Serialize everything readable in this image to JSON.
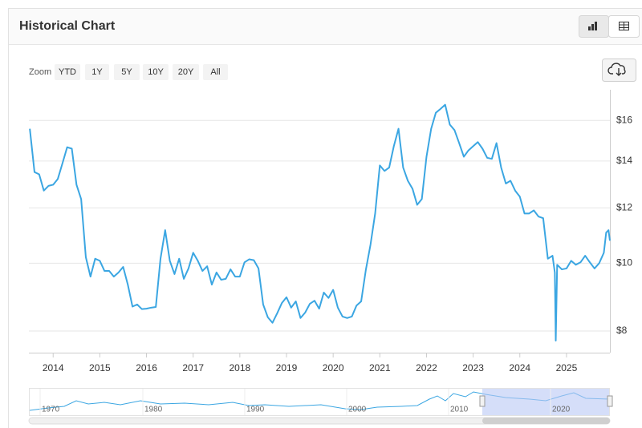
{
  "header": {
    "title": "Historical Chart"
  },
  "zoom": {
    "label": "Zoom",
    "buttons": [
      "YTD",
      "1Y",
      "5Y",
      "10Y",
      "20Y",
      "All"
    ]
  },
  "navigator": {
    "labels": [
      "1970",
      "1980",
      "1990",
      "2000",
      "2010",
      "2020"
    ]
  },
  "chart_data": {
    "type": "line",
    "color": "#3ba6e2",
    "log": true,
    "grid": true,
    "x": [
      2013.5,
      2013.6,
      2013.7,
      2013.8,
      2013.9,
      2014.0,
      2014.1,
      2014.2,
      2014.3,
      2014.4,
      2014.5,
      2014.6,
      2014.7,
      2014.8,
      2014.9,
      2015.0,
      2015.1,
      2015.2,
      2015.3,
      2015.4,
      2015.5,
      2015.6,
      2015.7,
      2015.8,
      2015.9,
      2016.0,
      2016.1,
      2016.2,
      2016.3,
      2016.4,
      2016.5,
      2016.6,
      2016.7,
      2016.8,
      2016.9,
      2017.0,
      2017.1,
      2017.2,
      2017.3,
      2017.4,
      2017.5,
      2017.6,
      2017.7,
      2017.8,
      2017.9,
      2018.0,
      2018.1,
      2018.2,
      2018.3,
      2018.4,
      2018.5,
      2018.6,
      2018.7,
      2018.8,
      2018.9,
      2019.0,
      2019.1,
      2019.2,
      2019.3,
      2019.4,
      2019.5,
      2019.6,
      2019.7,
      2019.8,
      2019.9,
      2020.0,
      2020.1,
      2020.2,
      2020.3,
      2020.4,
      2020.5,
      2020.6,
      2020.7,
      2020.8,
      2020.9,
      2021.0,
      2021.1,
      2021.2,
      2021.3,
      2021.4,
      2021.5,
      2021.6,
      2021.7,
      2021.8,
      2021.9,
      2022.0,
      2022.1,
      2022.2,
      2022.3,
      2022.4,
      2022.5,
      2022.6,
      2022.7,
      2022.8,
      2022.9,
      2023.0,
      2023.1,
      2023.2,
      2023.3,
      2023.4,
      2023.5,
      2023.6,
      2023.7,
      2023.8,
      2023.9,
      2024.0,
      2024.1,
      2024.2,
      2024.3,
      2024.4,
      2024.5,
      2024.6,
      2024.7,
      2024.75,
      2024.77,
      2024.8,
      2024.9,
      2025.0,
      2025.1,
      2025.2,
      2025.3,
      2025.4,
      2025.5,
      2025.6,
      2025.7,
      2025.8,
      2025.85,
      2025.9,
      2025.93
    ],
    "values": [
      15.57,
      13.5,
      13.4,
      12.7,
      12.9,
      12.95,
      13.2,
      13.9,
      14.65,
      14.58,
      12.95,
      12.35,
      10.2,
      9.57,
      10.15,
      10.08,
      9.75,
      9.75,
      9.57,
      9.7,
      9.88,
      9.32,
      8.67,
      8.73,
      8.6,
      8.61,
      8.64,
      8.66,
      10.15,
      11.15,
      10.08,
      9.65,
      10.15,
      9.5,
      9.83,
      10.35,
      10.08,
      9.75,
      9.9,
      9.32,
      9.7,
      9.47,
      9.5,
      9.8,
      9.57,
      9.57,
      10.03,
      10.13,
      10.1,
      9.83,
      8.73,
      8.37,
      8.22,
      8.48,
      8.77,
      8.94,
      8.64,
      8.82,
      8.35,
      8.5,
      8.75,
      8.84,
      8.61,
      9.08,
      8.92,
      9.16,
      8.64,
      8.39,
      8.35,
      8.39,
      8.7,
      8.82,
      9.78,
      10.63,
      11.78,
      13.8,
      13.55,
      13.7,
      14.7,
      15.57,
      13.7,
      13.12,
      12.78,
      12.12,
      12.35,
      14.2,
      15.57,
      16.41,
      16.62,
      16.85,
      15.78,
      15.5,
      14.85,
      14.2,
      14.5,
      14.7,
      14.9,
      14.58,
      14.15,
      14.1,
      14.85,
      13.7,
      13.0,
      13.12,
      12.7,
      12.45,
      11.78,
      11.78,
      11.9,
      11.66,
      11.6,
      10.15,
      10.25,
      9.7,
      7.75,
      9.95,
      9.8,
      9.83,
      10.08,
      9.95,
      10.03,
      10.25,
      10.03,
      9.83,
      10.0,
      10.35,
      11.06,
      11.15,
      10.77
    ],
    "xlim": [
      2013.48,
      2025.93
    ],
    "xticks": [
      2014,
      2015,
      2016,
      2017,
      2018,
      2019,
      2020,
      2021,
      2022,
      2023,
      2024,
      2025
    ],
    "ylim": [
      7.45,
      17.7
    ],
    "yticks": [
      {
        "value": 8,
        "label": "$8"
      },
      {
        "value": 10,
        "label": "$10"
      },
      {
        "value": 12,
        "label": "$12"
      },
      {
        "value": 14,
        "label": "$14"
      },
      {
        "value": 16,
        "label": "$16"
      }
    ]
  }
}
